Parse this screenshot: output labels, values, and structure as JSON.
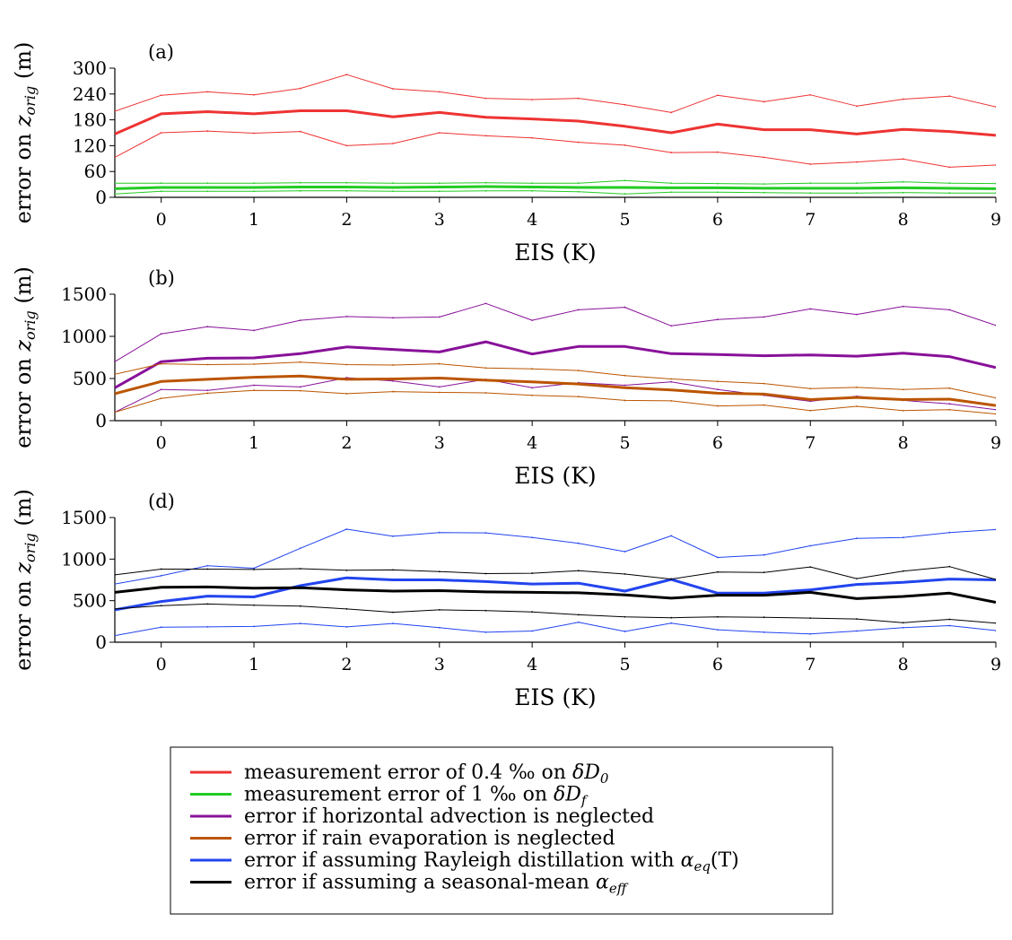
{
  "chart_data": [
    {
      "panel_label": "(a)",
      "type": "line",
      "xlabel": "EIS (K)",
      "ylabel": "error on z_orig (m)",
      "xlim": [
        -0.5,
        9
      ],
      "ylim": [
        0,
        300
      ],
      "xticks": [
        0,
        1,
        2,
        3,
        4,
        5,
        6,
        7,
        8,
        9
      ],
      "yticks": [
        0,
        60,
        120,
        180,
        240,
        300
      ],
      "x": [
        -0.5,
        0,
        0.5,
        1,
        1.5,
        2,
        2.5,
        3,
        3.5,
        4,
        4.5,
        5,
        5.5,
        6,
        6.5,
        7,
        7.5,
        8,
        8.5,
        9
      ],
      "series": [
        {
          "group": "red",
          "role": "upper",
          "values": [
            200,
            237,
            245,
            238,
            253,
            285,
            252,
            245,
            230,
            227,
            230,
            215,
            197,
            237,
            222,
            238,
            212,
            228,
            235,
            210
          ]
        },
        {
          "group": "red",
          "role": "mean",
          "values": [
            147,
            194,
            199,
            194,
            201,
            201,
            187,
            197,
            186,
            182,
            177,
            165,
            150,
            170,
            157,
            157,
            147,
            158,
            153,
            144
          ]
        },
        {
          "group": "red",
          "role": "lower",
          "values": [
            93,
            150,
            154,
            149,
            153,
            120,
            125,
            150,
            143,
            138,
            128,
            121,
            104,
            105,
            93,
            77,
            82,
            89,
            70,
            75
          ]
        },
        {
          "group": "green",
          "role": "upper",
          "values": [
            33,
            33,
            33,
            33,
            34,
            34,
            33,
            33,
            34,
            33,
            33,
            39,
            33,
            32,
            31,
            33,
            33,
            36,
            33,
            32
          ]
        },
        {
          "group": "green",
          "role": "mean",
          "values": [
            20,
            23,
            23,
            23,
            24,
            24,
            23,
            24,
            25,
            24,
            23,
            23,
            22,
            22,
            21,
            21,
            21,
            22,
            21,
            20
          ]
        },
        {
          "group": "green",
          "role": "lower",
          "values": [
            8,
            14,
            14,
            14,
            15,
            15,
            14,
            14,
            15,
            15,
            13,
            8,
            12,
            12,
            11,
            10,
            10,
            11,
            10,
            10
          ]
        }
      ]
    },
    {
      "panel_label": "(b)",
      "type": "line",
      "xlabel": "EIS (K)",
      "ylabel": "error on z_orig (m)",
      "xlim": [
        -0.5,
        9
      ],
      "ylim": [
        0,
        1500
      ],
      "xticks": [
        0,
        1,
        2,
        3,
        4,
        5,
        6,
        7,
        8,
        9
      ],
      "yticks": [
        0,
        500,
        1000,
        1500
      ],
      "x": [
        -0.5,
        0,
        0.5,
        1,
        1.5,
        2,
        2.5,
        3,
        3.5,
        4,
        4.5,
        5,
        5.5,
        6,
        6.5,
        7,
        7.5,
        8,
        8.5,
        9
      ],
      "series": [
        {
          "group": "purple",
          "role": "upper",
          "values": [
            700,
            1030,
            1115,
            1070,
            1190,
            1235,
            1220,
            1230,
            1390,
            1190,
            1315,
            1345,
            1125,
            1200,
            1230,
            1325,
            1260,
            1355,
            1315,
            1130
          ]
        },
        {
          "group": "purple",
          "role": "mean",
          "values": [
            390,
            700,
            740,
            745,
            795,
            875,
            845,
            815,
            935,
            790,
            880,
            880,
            795,
            785,
            770,
            780,
            765,
            800,
            760,
            630
          ]
        },
        {
          "group": "purple",
          "role": "lower",
          "values": [
            100,
            370,
            360,
            420,
            400,
            510,
            470,
            400,
            490,
            390,
            450,
            420,
            460,
            370,
            300,
            230,
            290,
            240,
            200,
            130
          ]
        },
        {
          "group": "orange",
          "role": "upper",
          "values": [
            550,
            675,
            665,
            670,
            695,
            665,
            660,
            675,
            625,
            615,
            595,
            535,
            495,
            465,
            440,
            380,
            395,
            370,
            385,
            270
          ]
        },
        {
          "group": "orange",
          "role": "mean",
          "values": [
            320,
            465,
            490,
            515,
            530,
            490,
            495,
            505,
            480,
            460,
            435,
            390,
            365,
            325,
            315,
            250,
            275,
            250,
            255,
            180
          ]
        },
        {
          "group": "orange",
          "role": "lower",
          "values": [
            100,
            265,
            325,
            360,
            355,
            320,
            345,
            335,
            330,
            300,
            285,
            240,
            235,
            175,
            185,
            120,
            170,
            120,
            130,
            80
          ]
        }
      ]
    },
    {
      "panel_label": "(d)",
      "type": "line",
      "xlabel": "EIS (K)",
      "ylabel": "error on z_orig (m)",
      "xlim": [
        -0.5,
        9
      ],
      "ylim": [
        0,
        1500
      ],
      "xticks": [
        0,
        1,
        2,
        3,
        4,
        5,
        6,
        7,
        8,
        9
      ],
      "yticks": [
        0,
        500,
        1000,
        1500
      ],
      "x": [
        -0.5,
        0,
        0.5,
        1,
        1.5,
        2,
        2.5,
        3,
        3.5,
        4,
        4.5,
        5,
        5.5,
        6,
        6.5,
        7,
        7.5,
        8,
        8.5,
        9
      ],
      "series": [
        {
          "group": "blue",
          "role": "upper",
          "values": [
            700,
            800,
            920,
            890,
            1130,
            1360,
            1275,
            1320,
            1315,
            1260,
            1190,
            1090,
            1280,
            1020,
            1050,
            1160,
            1250,
            1260,
            1320,
            1355
          ]
        },
        {
          "group": "blue",
          "role": "mean",
          "values": [
            390,
            490,
            555,
            545,
            680,
            775,
            750,
            750,
            730,
            700,
            710,
            615,
            755,
            590,
            590,
            630,
            695,
            720,
            760,
            750
          ]
        },
        {
          "group": "blue",
          "role": "lower",
          "values": [
            80,
            180,
            185,
            190,
            225,
            185,
            225,
            175,
            120,
            135,
            240,
            130,
            230,
            150,
            120,
            100,
            135,
            175,
            200,
            140
          ]
        },
        {
          "group": "black",
          "role": "upper",
          "values": [
            810,
            880,
            880,
            875,
            885,
            865,
            870,
            850,
            825,
            830,
            860,
            820,
            760,
            845,
            840,
            905,
            765,
            855,
            910,
            755
          ]
        },
        {
          "group": "black",
          "role": "mean",
          "values": [
            600,
            660,
            665,
            650,
            655,
            630,
            615,
            620,
            605,
            600,
            595,
            570,
            530,
            565,
            565,
            600,
            525,
            550,
            590,
            480
          ]
        },
        {
          "group": "black",
          "role": "lower",
          "values": [
            400,
            440,
            460,
            445,
            435,
            400,
            360,
            390,
            380,
            365,
            330,
            305,
            295,
            305,
            300,
            290,
            280,
            235,
            275,
            230
          ]
        }
      ]
    }
  ],
  "colors": {
    "red": "#ee3333",
    "green": "#22cc22",
    "purple": "#881199",
    "orange": "#bb5500",
    "blue": "#2244ee",
    "black": "#000000"
  },
  "legend": {
    "items": [
      {
        "group": "red",
        "prefix": "measurement error of 0.4 ‰ on ",
        "sym": "δD",
        "sub": "0"
      },
      {
        "group": "green",
        "prefix": "measurement error of 1 ‰ on ",
        "sym": "δD",
        "sub": "f"
      },
      {
        "group": "purple",
        "prefix": "error if horizontal advection is neglected",
        "sym": "",
        "sub": ""
      },
      {
        "group": "orange",
        "prefix": "error if rain evaporation is neglected",
        "sym": "",
        "sub": ""
      },
      {
        "group": "blue",
        "prefix": "error if assuming Rayleigh distillation with ",
        "sym": "α",
        "sub": "eq",
        "suffix": "(T)"
      },
      {
        "group": "black",
        "prefix": "error if assuming a seasonal-mean ",
        "sym": "α",
        "sub": "eff"
      }
    ]
  }
}
